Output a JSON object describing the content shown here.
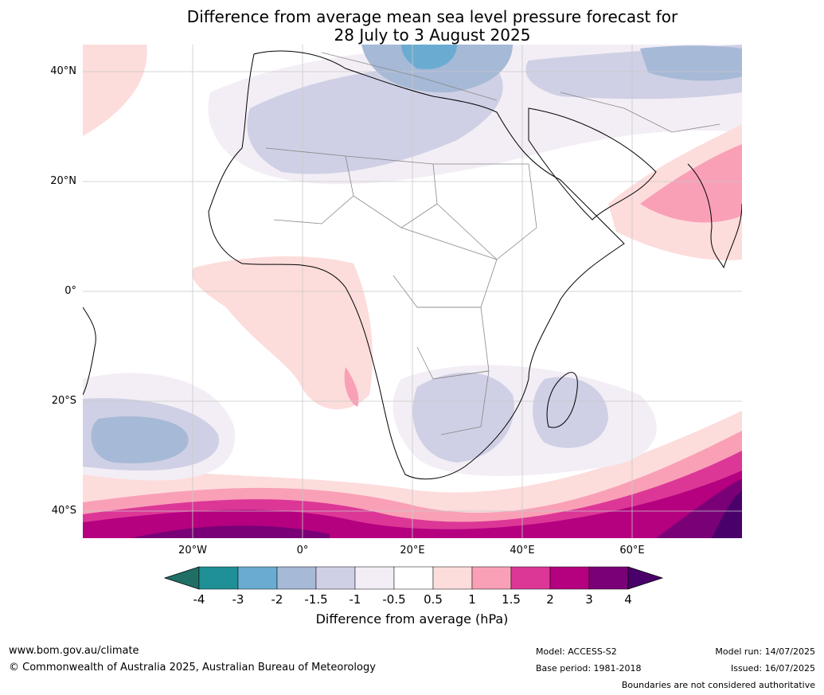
{
  "title": {
    "line1": "Difference from average mean sea level pressure forecast for",
    "line2": "28 July to 3 August 2025"
  },
  "map": {
    "lat_labels": [
      "40°N",
      "20°N",
      "0°",
      "20°S",
      "40°S"
    ],
    "lon_labels": [
      "20°W",
      "0°",
      "20°E",
      "40°E",
      "60°E"
    ]
  },
  "colorbar": {
    "ticks": [
      "-4",
      "-3",
      "-2",
      "-1.5",
      "-1",
      "-0.5",
      "0.5",
      "1",
      "1.5",
      "2",
      "3",
      "4"
    ],
    "colors": [
      "#1f6f66",
      "#1e9096",
      "#6aacd1",
      "#a6b9d7",
      "#cfd0e5",
      "#f3eef5",
      "#ffffff",
      "#fddcdc",
      "#f9a0b6",
      "#dc3796",
      "#b5007f",
      "#7a0077",
      "#49006a"
    ],
    "label": "Difference from average (hPa)"
  },
  "footer": {
    "url": "www.bom.gov.au/climate",
    "copyright": "© Commonwealth of Australia 2025, Australian Bureau of Meteorology",
    "model": "Model: ACCESS-S2",
    "base_period": "Base period: 1981-2018",
    "model_run": "Model run: 14/07/2025",
    "issued": "Issued: 16/07/2025",
    "disclaimer": "Boundaries are not considered authoritative"
  }
}
